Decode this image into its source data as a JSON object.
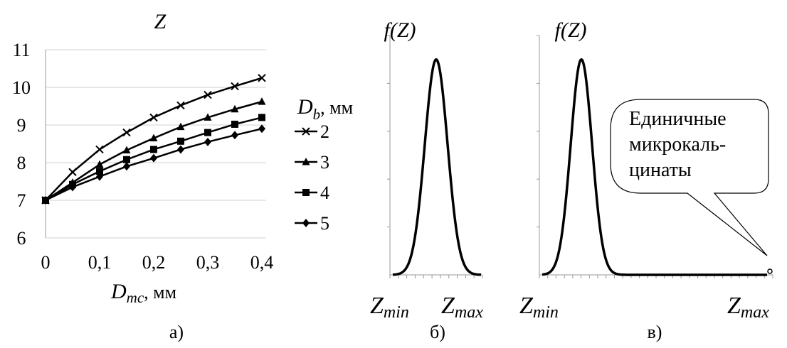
{
  "chart_data": [
    {
      "panel": "а)",
      "type": "line",
      "ylabel": "Z",
      "xlabel_main": "D",
      "xlabel_sub": "mc",
      "xlabel_unit": ", мм",
      "x": [
        0,
        0.05,
        0.1,
        0.15,
        0.2,
        0.25,
        0.3,
        0.35,
        0.4
      ],
      "x_tick_labels": [
        "0",
        "0,1",
        "0,2",
        "0,3",
        "0,4"
      ],
      "x_tick_values": [
        0,
        0.1,
        0.2,
        0.3,
        0.4
      ],
      "xlim": [
        0,
        0.4
      ],
      "y_tick_labels": [
        "6",
        "7",
        "8",
        "9",
        "10",
        "11"
      ],
      "y_tick_values": [
        6,
        7,
        8,
        9,
        10,
        11
      ],
      "ylim": [
        6,
        11
      ],
      "grid": "horizontal",
      "legend_title_main": "D",
      "legend_title_sub": "b",
      "legend_title_unit": ", мм",
      "legend_placement": "right",
      "series": [
        {
          "name": "2",
          "marker": "x",
          "values": [
            7.0,
            7.75,
            8.35,
            8.8,
            9.2,
            9.52,
            9.8,
            10.03,
            10.25
          ]
        },
        {
          "name": "3",
          "marker": "triangle",
          "values": [
            7.0,
            7.47,
            7.95,
            8.33,
            8.65,
            8.95,
            9.2,
            9.42,
            9.62
          ]
        },
        {
          "name": "4",
          "marker": "square",
          "values": [
            7.0,
            7.42,
            7.77,
            8.08,
            8.35,
            8.57,
            8.8,
            9.02,
            9.2
          ]
        },
        {
          "name": "5",
          "marker": "diamond",
          "values": [
            7.0,
            7.35,
            7.63,
            7.9,
            8.12,
            8.35,
            8.55,
            8.73,
            8.9
          ]
        }
      ]
    },
    {
      "panel": "б)",
      "type": "line",
      "ylabel": "f(Z)",
      "x_left_main": "Z",
      "x_left_sub": "min",
      "x_right_main": "Z",
      "x_right_sub": "max",
      "peak_x_fraction": 0.5,
      "peak_height_fraction": 0.9
    },
    {
      "panel": "в)",
      "type": "line",
      "ylabel": "f(Z)",
      "x_left_main": "Z",
      "x_left_sub": "min",
      "x_right_main": "Z",
      "x_right_sub": "max",
      "peak_x_fraction": 0.18,
      "peak_height_fraction": 0.9,
      "callout_lines": [
        "Единичные",
        "микрокаль-",
        "цинаты"
      ]
    }
  ]
}
